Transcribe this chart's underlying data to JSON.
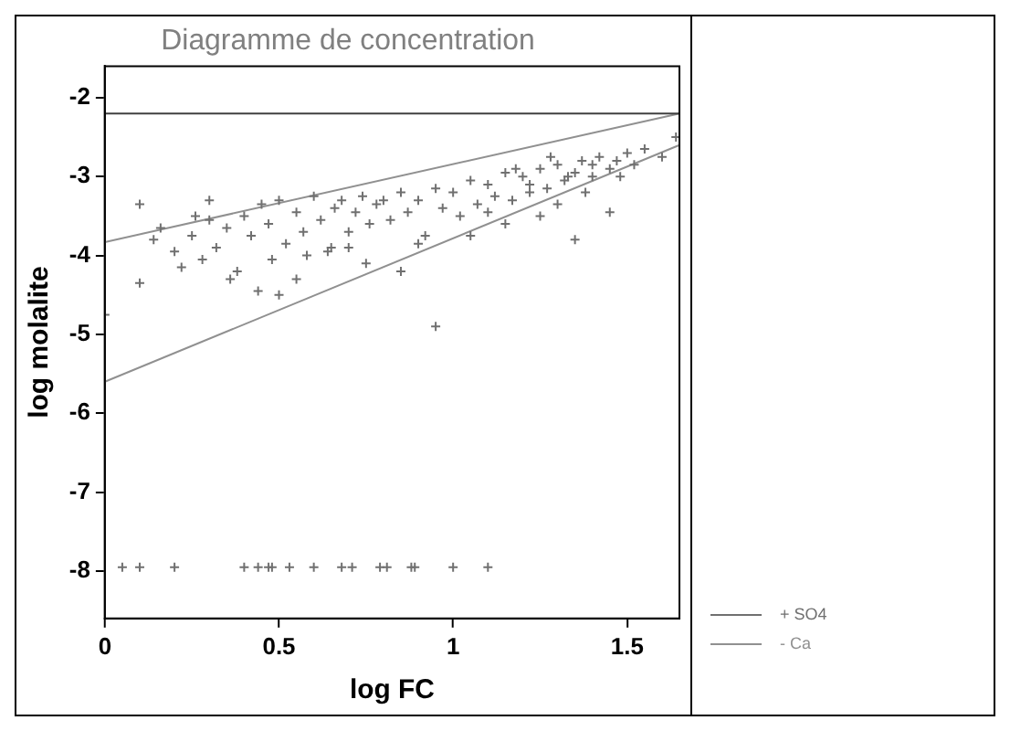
{
  "chart_data": {
    "type": "scatter",
    "title": "Diagramme de concentration",
    "xlabel": "log FC",
    "ylabel": "log molalite",
    "xlim": [
      0,
      1.65
    ],
    "ylim": [
      -8.6,
      -1.6
    ],
    "xticks": [
      0,
      0.5,
      1,
      1.5
    ],
    "yticks": [
      -2,
      -3,
      -4,
      -5,
      -6,
      -7,
      -8
    ],
    "grid": false,
    "legend": "bottom right",
    "series": [
      {
        "name": "+ SO4",
        "type": "scatter",
        "marker": "cross",
        "color": "#707070",
        "x": [
          0.05,
          0.1,
          0.2,
          0.4,
          0.44,
          0.47,
          0.48,
          0.53,
          0.6,
          0.68,
          0.71,
          0.79,
          0.81,
          0.88,
          0.89,
          1.0,
          1.1,
          0.0,
          0.1,
          0.1,
          0.14,
          0.16,
          0.2,
          0.22,
          0.25,
          0.28,
          0.3,
          0.32,
          0.35,
          0.38,
          0.4,
          0.42,
          0.44,
          0.45,
          0.47,
          0.5,
          0.52,
          0.55,
          0.57,
          0.6,
          0.62,
          0.64,
          0.66,
          0.68,
          0.7,
          0.72,
          0.74,
          0.76,
          0.78,
          0.8,
          0.82,
          0.85,
          0.87,
          0.9,
          0.92,
          0.95,
          0.97,
          1.0,
          1.02,
          1.05,
          1.07,
          1.1,
          1.12,
          1.15,
          1.17,
          1.2,
          1.22,
          1.25,
          1.27,
          1.3,
          1.32,
          1.35,
          1.37,
          1.4,
          1.42,
          1.45,
          1.47,
          1.5,
          1.52,
          1.55,
          1.6,
          1.64,
          0.36,
          0.5,
          0.58,
          0.75,
          0.95,
          1.35,
          1.45,
          0.3,
          0.55,
          0.65,
          0.85,
          1.05,
          1.15,
          1.25,
          1.3,
          1.38,
          1.48,
          1.18,
          1.28,
          1.22,
          1.33,
          1.4,
          1.1,
          0.9,
          0.7,
          0.48,
          0.26
        ],
        "values": [
          -7.95,
          -7.95,
          -7.95,
          -7.95,
          -7.95,
          -7.95,
          -7.95,
          -7.95,
          -7.95,
          -7.95,
          -7.95,
          -7.95,
          -7.95,
          -7.95,
          -7.95,
          -7.95,
          -7.95,
          -4.75,
          -3.35,
          -4.35,
          -3.8,
          -3.65,
          -3.95,
          -4.15,
          -3.75,
          -4.05,
          -3.3,
          -3.9,
          -3.65,
          -4.2,
          -3.5,
          -3.75,
          -4.45,
          -3.35,
          -3.6,
          -3.3,
          -3.85,
          -3.45,
          -3.7,
          -3.25,
          -3.55,
          -3.95,
          -3.4,
          -3.3,
          -3.7,
          -3.45,
          -3.25,
          -3.6,
          -3.35,
          -3.3,
          -3.55,
          -3.2,
          -3.45,
          -3.3,
          -3.75,
          -3.15,
          -3.4,
          -3.2,
          -3.5,
          -3.05,
          -3.35,
          -3.1,
          -3.25,
          -2.95,
          -3.3,
          -3.0,
          -3.2,
          -2.9,
          -3.15,
          -2.85,
          -3.05,
          -2.95,
          -2.8,
          -3.0,
          -2.75,
          -2.9,
          -2.8,
          -2.7,
          -2.85,
          -2.65,
          -2.75,
          -2.5,
          -4.3,
          -4.5,
          -4.0,
          -4.1,
          -4.9,
          -3.8,
          -3.45,
          -3.55,
          -4.3,
          -3.9,
          -4.2,
          -3.75,
          -3.6,
          -3.5,
          -3.35,
          -3.2,
          -3.0,
          -2.9,
          -2.75,
          -3.1,
          -3.0,
          -2.85,
          -3.45,
          -3.85,
          -3.9,
          -4.05,
          -3.5
        ]
      },
      {
        "type": "line",
        "marker": "none",
        "color": "#404040",
        "x": [
          0,
          1.65
        ],
        "values": [
          -2.2,
          -2.2
        ]
      },
      {
        "name": "- Ca",
        "type": "line",
        "marker": "none",
        "color": "#909090",
        "x": [
          0,
          1.65
        ],
        "values": [
          -3.83,
          -2.2
        ]
      },
      {
        "type": "line",
        "marker": "none",
        "color": "#909090",
        "x": [
          0,
          1.65
        ],
        "values": [
          -5.6,
          -2.6
        ]
      }
    ]
  }
}
